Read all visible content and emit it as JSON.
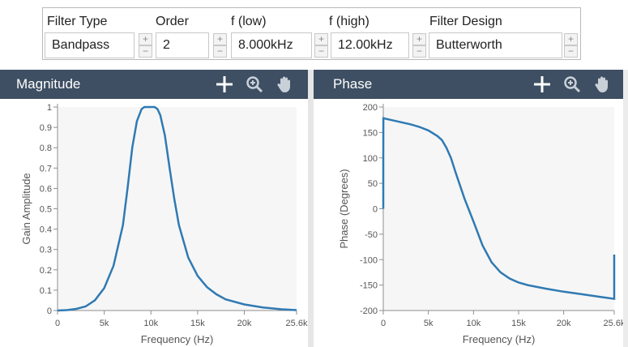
{
  "settings": {
    "headers": {
      "filter_type": "Filter Type",
      "order": "Order",
      "f_low": "f (low)",
      "f_high": "f (high)",
      "filter_design": "Filter Design"
    },
    "values": {
      "filter_type": "Bandpass",
      "order": "2",
      "f_low": "8.000kHz",
      "f_high": "12.00kHz",
      "filter_design": "Butterworth"
    },
    "stepper_up": "+",
    "stepper_down": "−"
  },
  "panels": {
    "magnitude": {
      "title": "Magnitude"
    },
    "phase": {
      "title": "Phase"
    }
  },
  "icons": [
    "crosshair-icon",
    "zoom-icon",
    "pan-hand-icon"
  ],
  "colors": {
    "header_bg": "#3e4f63",
    "curve": "#2f7ab3"
  },
  "chart_data": [
    {
      "type": "line",
      "title": "Magnitude",
      "xlabel": "Frequency (Hz)",
      "ylabel": "Gain Amplitude",
      "xlim": [
        0,
        25600
      ],
      "ylim": [
        0,
        1
      ],
      "x_ticks": [
        0,
        5000,
        10000,
        15000,
        20000,
        25600
      ],
      "x_tick_labels": [
        "0",
        "5k",
        "10k",
        "15k",
        "20k",
        "25.6k"
      ],
      "y_ticks": [
        0,
        0.1,
        0.2,
        0.3,
        0.4,
        0.5,
        0.6,
        0.7,
        0.8,
        0.9,
        1
      ],
      "y_tick_labels": [
        "0",
        "0.1",
        "0.2",
        "0.3",
        "0.4",
        "0.5",
        "0.6",
        "0.7",
        "0.8",
        "0.9",
        "1"
      ],
      "series": [
        {
          "x": [
            0,
            1000,
            2000,
            3000,
            4000,
            5000,
            6000,
            7000,
            7500,
            8000,
            8500,
            9000,
            9300,
            9600,
            10000,
            10400,
            10700,
            11000,
            11500,
            12000,
            12500,
            13000,
            14000,
            15000,
            16000,
            17000,
            18000,
            20000,
            22000,
            24000,
            25600
          ],
          "y": [
            0,
            0.002,
            0.008,
            0.02,
            0.05,
            0.11,
            0.22,
            0.42,
            0.6,
            0.8,
            0.93,
            0.99,
            1,
            1,
            1,
            1,
            0.99,
            0.96,
            0.86,
            0.7,
            0.55,
            0.42,
            0.26,
            0.17,
            0.115,
            0.08,
            0.055,
            0.03,
            0.015,
            0.006,
            0.002
          ]
        }
      ]
    },
    {
      "type": "line",
      "title": "Phase",
      "xlabel": "Frequency (Hz)",
      "ylabel": "Phase (Degrees)",
      "xlim": [
        0,
        25600
      ],
      "ylim": [
        -200,
        200
      ],
      "x_ticks": [
        0,
        5000,
        10000,
        15000,
        20000,
        25600
      ],
      "x_tick_labels": [
        "0",
        "5k",
        "10k",
        "15k",
        "20k",
        "25.6k"
      ],
      "y_ticks": [
        -200,
        -150,
        -100,
        -50,
        0,
        50,
        100,
        150,
        200
      ],
      "y_tick_labels": [
        "-200",
        "-150",
        "-100",
        "-50",
        "0",
        "50",
        "100",
        "150",
        "200"
      ],
      "series": [
        {
          "x": [
            0,
            0,
            10,
            20,
            1000,
            2000,
            3000,
            4000,
            5000,
            6000,
            6500,
            7000,
            7500,
            8000,
            9000,
            10000,
            11000,
            12000,
            13000,
            14000,
            15000,
            16000,
            18000,
            20000,
            22000,
            24000,
            25600,
            25600
          ],
          "y": [
            0,
            95,
            180,
            178,
            174,
            170,
            166,
            161,
            154,
            143,
            135,
            120,
            100,
            72,
            20,
            -25,
            -72,
            -105,
            -125,
            -137,
            -145,
            -150,
            -157,
            -163,
            -168,
            -173,
            -177,
            -90
          ]
        }
      ]
    }
  ]
}
